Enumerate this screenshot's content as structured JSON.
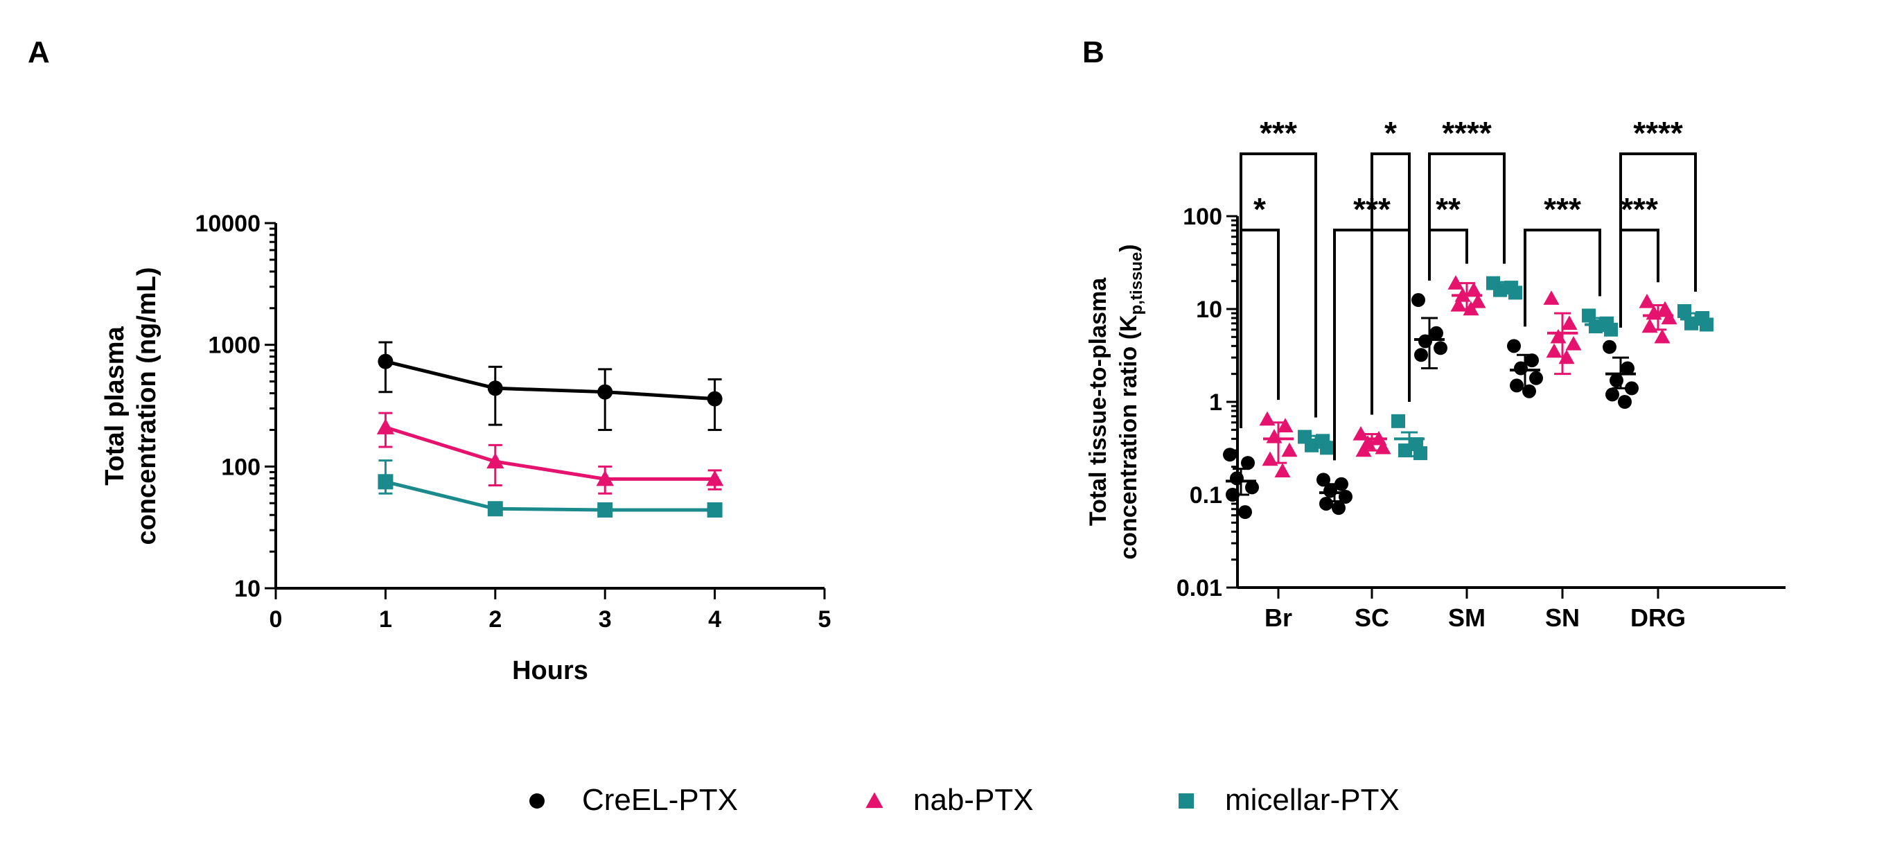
{
  "panels": {
    "a": {
      "letter": "A"
    },
    "b": {
      "letter": "B"
    }
  },
  "legend": {
    "items": [
      {
        "label": "CreEL-PTX",
        "marker": "circle",
        "color": "#000000"
      },
      {
        "label": "nab-PTX",
        "marker": "triangle",
        "color": "#e5136e"
      },
      {
        "label": "micellar-PTX",
        "marker": "square",
        "color": "#1b8a8c"
      }
    ]
  },
  "chart_data": [
    {
      "type": "line",
      "panel": "A",
      "title": "",
      "xlabel": "Hours",
      "ylabel_lines": [
        "Total plasma",
        "concentration (ng/mL)"
      ],
      "xlim": [
        0,
        5
      ],
      "ylim": [
        10,
        10000
      ],
      "yscale": "log",
      "xticks": [
        0,
        1,
        2,
        3,
        4,
        5
      ],
      "xtick_labels": [
        "0",
        "1",
        "2",
        "3",
        "4",
        "5"
      ],
      "yticks": [
        10,
        100,
        1000,
        10000
      ],
      "ytick_labels": [
        "10",
        "100",
        "1000",
        "10000"
      ],
      "grid": false,
      "x": [
        1,
        2,
        3,
        4
      ],
      "series": [
        {
          "name": "CreEL-PTX",
          "color": "#000000",
          "marker": "circle",
          "values": [
            730,
            440,
            410,
            360
          ],
          "err_low": [
            410,
            220,
            200,
            200
          ],
          "err_high": [
            1050,
            660,
            630,
            520
          ]
        },
        {
          "name": "nab-PTX",
          "color": "#e5136e",
          "marker": "triangle",
          "values": [
            210,
            110,
            79,
            79
          ],
          "err_low": [
            145,
            70,
            60,
            65
          ],
          "err_high": [
            275,
            150,
            100,
            93
          ]
        },
        {
          "name": "micellar-PTX",
          "color": "#1b8a8c",
          "marker": "square",
          "values": [
            75,
            45,
            44,
            44
          ],
          "err_low": [
            60,
            45,
            44,
            44
          ],
          "err_high": [
            112,
            45,
            44,
            44
          ]
        }
      ]
    },
    {
      "type": "scatter",
      "panel": "B",
      "title": "",
      "xlabel": "",
      "ylabel_line1": "Total tissue-to-plasma",
      "ylabel_line2_main": "concentration ratio (K",
      "ylabel_line2_sub": "p,tissue",
      "ylabel_line2_end": ")",
      "categories": [
        "Br",
        "SC",
        "SM",
        "SN",
        "DRG"
      ],
      "ylim": [
        0.01,
        100
      ],
      "yscale": "log",
      "yticks": [
        0.01,
        0.1,
        1,
        10,
        100
      ],
      "ytick_labels": [
        "0.01",
        "0.1",
        "1",
        "10",
        "100"
      ],
      "grid": false,
      "series": [
        {
          "name": "CreEL-PTX",
          "color": "#000000",
          "marker": "circle",
          "means": [
            0.14,
            0.105,
            4.7,
            2.2,
            2.0
          ],
          "err_low": [
            0.1,
            0.085,
            2.3,
            1.4,
            1.4
          ],
          "err_high": [
            0.19,
            0.13,
            8.0,
            3.2,
            3.0
          ],
          "points": [
            [
              0.27,
              0.22,
              0.15,
              0.12,
              0.1,
              0.065
            ],
            [
              0.145,
              0.13,
              0.11,
              0.095,
              0.08,
              0.072
            ],
            [
              12.5,
              5.5,
              4.5,
              3.8,
              3.2
            ],
            [
              4.0,
              2.8,
              2.3,
              1.8,
              1.5,
              1.3
            ],
            [
              3.9,
              2.3,
              1.7,
              1.4,
              1.2,
              1.0
            ]
          ]
        },
        {
          "name": "nab-PTX",
          "color": "#e5136e",
          "marker": "triangle",
          "means": [
            0.4,
            0.4,
            14,
            5.5,
            8.5
          ],
          "err_low": [
            0.22,
            0.3,
            10,
            2.0,
            6.0
          ],
          "err_high": [
            0.6,
            0.45,
            19,
            9.0,
            11
          ],
          "points": [
            [
              0.65,
              0.55,
              0.42,
              0.3,
              0.24,
              0.18
            ],
            [
              0.45,
              0.4,
              0.36,
              0.32,
              0.3
            ],
            [
              19,
              16,
              14,
              12,
              11,
              10
            ],
            [
              13,
              7,
              5,
              4.2,
              3.5,
              3.0
            ],
            [
              12,
              10,
              9,
              8,
              6.5,
              5
            ]
          ]
        },
        {
          "name": "micellar-PTX",
          "color": "#1b8a8c",
          "marker": "square",
          "means": [
            0.37,
            0.4,
            17,
            6.8,
            7.8
          ],
          "err_low": [
            0.32,
            0.26,
            15,
            5.8,
            6.8
          ],
          "err_high": [
            0.43,
            0.47,
            19.5,
            8.0,
            9.0
          ],
          "points": [
            [
              0.42,
              0.38,
              0.34,
              0.32
            ],
            [
              0.62,
              0.35,
              0.3,
              0.28
            ],
            [
              19,
              17,
              16,
              15
            ],
            [
              8.5,
              7.0,
              6.5,
              6.0
            ],
            [
              9.5,
              8.0,
              7.0,
              6.8
            ]
          ]
        }
      ],
      "significance": [
        {
          "category": "Br",
          "comparison": "CreEL-PTX vs nab-PTX",
          "stars": "*"
        },
        {
          "category": "Br",
          "comparison": "CreEL-PTX vs micellar-PTX",
          "stars": "***"
        },
        {
          "category": "SC",
          "comparison": "CreEL-PTX vs micellar-PTX",
          "stars": "***"
        },
        {
          "category": "SC",
          "comparison": "nab-PTX vs micellar-PTX",
          "stars": "*"
        },
        {
          "category": "SM",
          "comparison": "CreEL-PTX vs nab-PTX",
          "stars": "**"
        },
        {
          "category": "SM",
          "comparison": "CreEL-PTX vs micellar-PTX",
          "stars": "****"
        },
        {
          "category": "SN",
          "comparison": "CreEL-PTX vs micellar-PTX",
          "stars": "***"
        },
        {
          "category": "DRG",
          "comparison": "CreEL-PTX vs nab-PTX",
          "stars": "***"
        },
        {
          "category": "DRG",
          "comparison": "CreEL-PTX vs micellar-PTX",
          "stars": "****"
        }
      ]
    }
  ]
}
